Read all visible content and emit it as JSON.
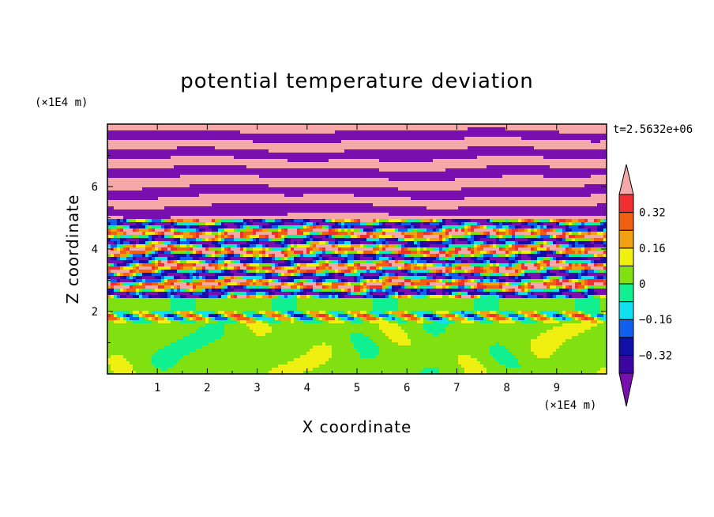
{
  "chart_data": {
    "type": "heatmap",
    "title": "potential temperature deviation",
    "xlabel": "X coordinate",
    "ylabel": "Z coordinate",
    "x_unit": "(×1E4 m)",
    "y_unit": "(×1E4 m)",
    "time_label": "t=2.5632e+06",
    "xlim": [
      0,
      10
    ],
    "ylim": [
      0,
      8
    ],
    "x_ticks": [
      1,
      2,
      3,
      4,
      5,
      6,
      7,
      8,
      9
    ],
    "y_ticks": [
      2,
      4,
      6
    ],
    "colorbar": {
      "levels": [
        -0.4,
        -0.32,
        -0.24,
        -0.16,
        -0.08,
        0,
        0.08,
        0.16,
        0.24,
        0.32,
        0.4
      ],
      "labels": [
        "0.32",
        "0.16",
        "0",
        "−0.16",
        "−0.32"
      ],
      "label_values": [
        0.32,
        0.16,
        0,
        -0.16,
        -0.32
      ],
      "colors": [
        "#7a0fb0",
        "#3a05a0",
        "#1010a8",
        "#1060f0",
        "#10e0f0",
        "#10f090",
        "#80e010",
        "#f0f010",
        "#f0a010",
        "#f06010",
        "#f03030",
        "#f4a8a8"
      ]
    },
    "regions": [
      {
        "z_range": [
          0,
          2.0
        ],
        "pattern": "broad cells of values near 0 to +0.08"
      },
      {
        "z_range": [
          2.0,
          2.4
        ],
        "pattern": "uniform layer near 0"
      },
      {
        "z_range": [
          2.4,
          5.0
        ],
        "pattern": "turbulent mixed layer spanning full color range"
      },
      {
        "z_range": [
          5.0,
          8.0
        ],
        "pattern": "alternating horizontal bands of above +0.4 and below −0.4"
      }
    ]
  }
}
